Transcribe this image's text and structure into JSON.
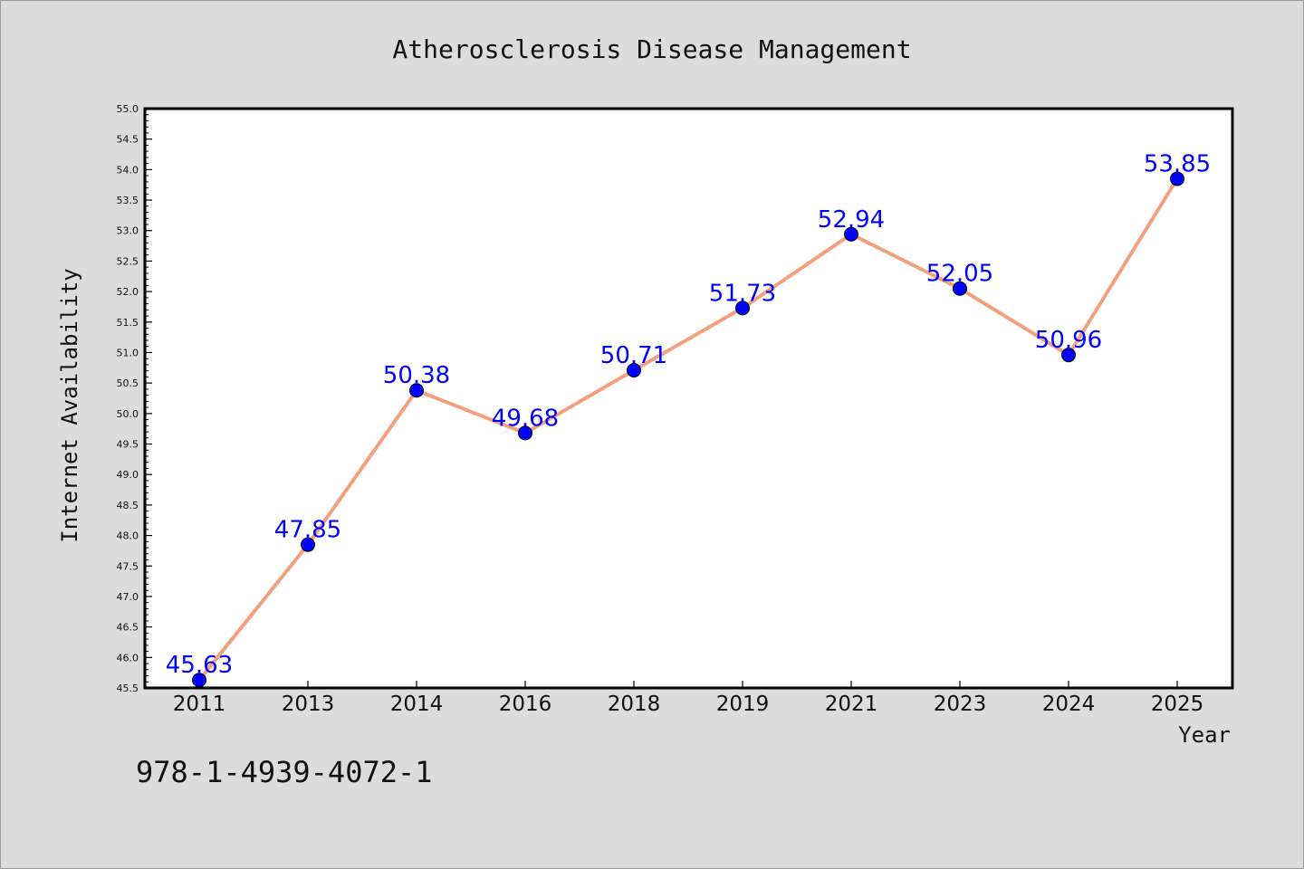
{
  "chart_data": {
    "type": "line",
    "title": "Atherosclerosis Disease Management",
    "xlabel": "Year",
    "ylabel": "Internet Availability",
    "categories": [
      "2011",
      "2013",
      "2014",
      "2016",
      "2018",
      "2019",
      "2021",
      "2023",
      "2024",
      "2025"
    ],
    "series": [
      {
        "values": [
          45.63,
          47.85,
          50.38,
          49.68,
          50.71,
          51.73,
          52.94,
          52.05,
          50.96,
          53.85
        ],
        "line_color": "#f4a07e",
        "marker_color": "#0000ff"
      }
    ],
    "data_labels": [
      "45.63",
      "47.85",
      "50.38",
      "49.68",
      "50.71",
      "51.73",
      "52.94",
      "52.05",
      "50.96",
      "53.85"
    ],
    "ylim": [
      45.5,
      55.0
    ],
    "yticks": [
      "45.5",
      "46.0",
      "46.5",
      "47.0",
      "47.5",
      "48.0",
      "48.5",
      "49.0",
      "49.5",
      "50.0",
      "50.5",
      "51.0",
      "51.5",
      "52.0",
      "52.5",
      "53.0",
      "53.5",
      "54.0",
      "54.5",
      "55.0"
    ],
    "grid": false,
    "legend": "none"
  },
  "footer_text": "978-1-4939-4072-1",
  "colors": {
    "background": "#dcdcdc",
    "plot_background": "#ffffff",
    "data_label": "#0000ff"
  }
}
